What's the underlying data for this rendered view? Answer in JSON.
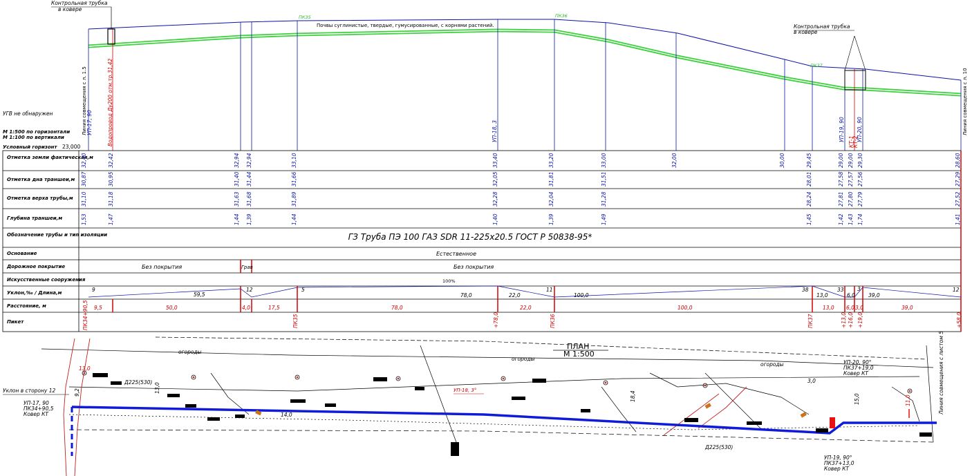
{
  "profile": {
    "top_labels": {
      "control_tube_left": [
        "Контрольная трубка",
        "в ковере"
      ],
      "control_tube_right": [
        "Контрольная трубка",
        "в ковере"
      ],
      "soil_note": "Почвы суглинистые, твердые, гумусированные, с корнями растений.",
      "pk_labels": [
        "ПК35",
        "ПК36",
        "ПК37"
      ]
    },
    "left_notes": {
      "ugv": "УГВ не обнаружен",
      "scale_h": "М 1:500 по горизонтали",
      "scale_v": "М 1:100 по вертикали",
      "datum_label": "Условный горизонт",
      "datum_value": "23,000"
    },
    "vertical_labels": {
      "left_joint": "Линия совмещения с л. 1.5",
      "right_joint": "Линия совмещения с л. 10",
      "water_pipe": "Водопровод Ду200 отм.тр.31,42",
      "up_points": [
        "УП-17, 90",
        "УП-18, 3",
        "УП-19, 90",
        "УП-20, 90"
      ],
      "kt_labels": [
        "КТ-1",
        "КТ-2"
      ]
    },
    "row_labels": [
      "Отметка земли фактическая,м",
      "Отметка дна траншеи,м",
      "Отметка верха трубы,м",
      "Глубина траншеи,м",
      "Обозначение трубы и тип изоляции",
      "Основание",
      "Дорожное покрытие",
      "Искусственные сооружения",
      "Уклон,‰ / Длина,м",
      "Расстояние, м",
      "Пикет"
    ],
    "ground": [
      "32,40",
      "32,42",
      "32,94",
      "32,94",
      "33,10",
      "33,40",
      "33,20",
      "33,00",
      "32,00",
      "30,00",
      "29,45",
      "29,00",
      "29,00",
      "29,30",
      "28,60"
    ],
    "bottom": [
      "30,87",
      "30,95",
      "31,40",
      "31,44",
      "31,66",
      "32,05",
      "31,81",
      "31,51",
      "28,01",
      "27,58",
      "27,57",
      "27,56",
      "27,29"
    ],
    "top": [
      "31,10",
      "31,18",
      "31,63",
      "31,68",
      "31,89",
      "32,28",
      "32,04",
      "31,28",
      "28,24",
      "27,81",
      "27,80",
      "27,79",
      "27,52"
    ],
    "depth": [
      "1,53",
      "1,47",
      "1,44",
      "1,39",
      "1,44",
      "1,40",
      "1,39",
      "1,49",
      "1,45",
      "1,42",
      "1,43",
      "1,74",
      "1,41"
    ],
    "pipe_spec": "ГЗ Труба ПЭ 100 ГАЗ SDR 11-225х20.5 ГОСТ Р 50838-95*",
    "base": "Естественное",
    "road_cover": [
      "Без покрытия",
      "Грав",
      "Без покрытия"
    ],
    "structures": "100%",
    "slopes": [
      "9",
      "59,5",
      "12",
      "5",
      "78,0",
      "22,0",
      "11",
      "100,0",
      "38",
      "13,0",
      "33",
      "6,0",
      "3",
      "39,0",
      "12"
    ],
    "distances": [
      "9,5",
      "50,0",
      "4,0",
      "17,5",
      "78,0",
      "22,0",
      "100,0",
      "13,0",
      "6,0",
      "3,0",
      "39,0"
    ],
    "pickets": [
      "ПК34+90,5",
      "ПК35",
      "+78,0",
      "ПК36",
      "ПК37",
      "+13,0",
      "+16,0",
      "+19,0",
      "+58,0"
    ]
  },
  "plan": {
    "title": "ПЛАН",
    "scale": "М 1:500",
    "labels": {
      "left_turn": "Уклон в сторону 12",
      "up17": [
        "УП-17, 90",
        "ПК34+90,5",
        "Ковер КТ"
      ],
      "up18": "УП-18, 3°",
      "up20": [
        "УП-20, 90°",
        "ПК37+19,0",
        "Ковер КТ"
      ],
      "up19": [
        "УП-19, 90°",
        "ПК37+13,0",
        "Ковер КТ"
      ],
      "gas_pipe_tags": [
        "Д225(530)",
        "Д225(530)"
      ],
      "terrain": [
        "огороды",
        "огороды",
        "огороды"
      ],
      "right_joint": "Линия совмещения с листом 5",
      "dims": [
        "13,0",
        "3,0",
        "11,0",
        "13,0",
        "18,4",
        "15,0",
        "9,2",
        "14,0"
      ]
    }
  }
}
